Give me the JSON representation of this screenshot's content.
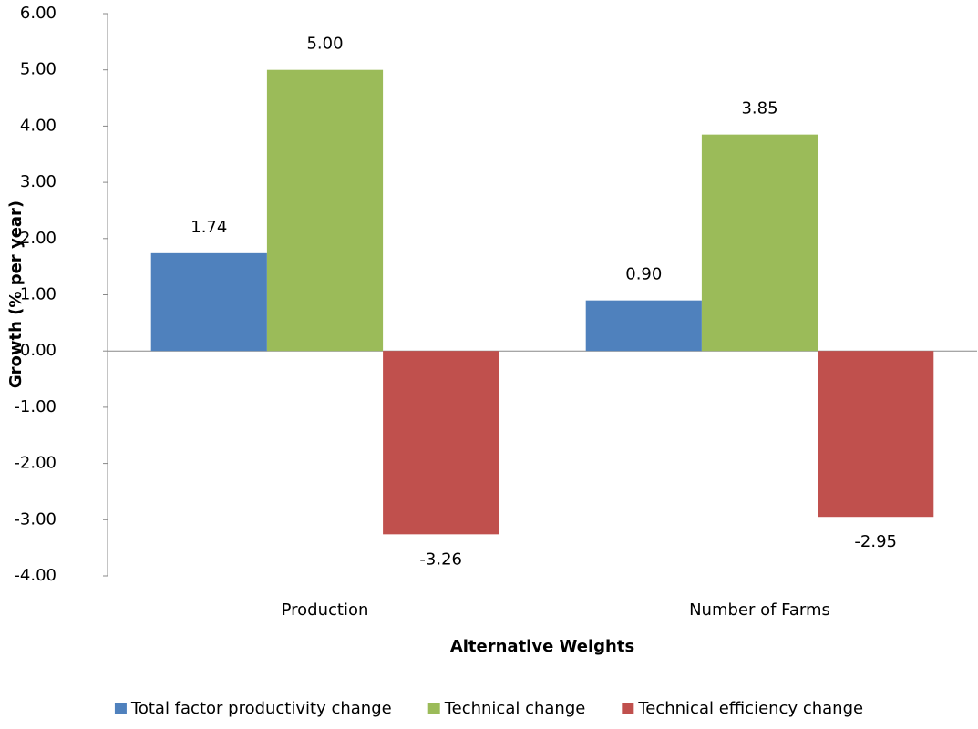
{
  "chart_data": {
    "type": "bar",
    "x_label": "Alternative Weights",
    "y_label": "Growth (% per year)",
    "categories": [
      "Production",
      "Number of Farms"
    ],
    "series": [
      {
        "name": "Total factor productivity change",
        "color": "#4f81bd",
        "values": [
          1.74,
          0.9
        ],
        "value_labels": [
          "1.74",
          "0.90"
        ]
      },
      {
        "name": "Technical change",
        "color": "#9bbb59",
        "values": [
          5.0,
          3.85
        ],
        "value_labels": [
          "5.00",
          "3.85"
        ]
      },
      {
        "name": "Technical efficiency change",
        "color": "#c0504d",
        "values": [
          -3.26,
          -2.95
        ],
        "value_labels": [
          "-3.26",
          "-2.95"
        ]
      }
    ],
    "ylim": [
      -4,
      6
    ],
    "yticks": [
      {
        "value": 6,
        "label": "6.00"
      },
      {
        "value": 5,
        "label": "5.00"
      },
      {
        "value": 4,
        "label": "4.00"
      },
      {
        "value": 3,
        "label": "3.00"
      },
      {
        "value": 2,
        "label": "2.00"
      },
      {
        "value": 1,
        "label": "1.00"
      },
      {
        "value": 0,
        "label": "0.00"
      },
      {
        "value": -1,
        "label": "-1.00"
      },
      {
        "value": -2,
        "label": "-2.00"
      },
      {
        "value": -3,
        "label": "-3.00"
      },
      {
        "value": -4,
        "label": "-4.00"
      }
    ],
    "legend": "bottom",
    "grid": false
  }
}
